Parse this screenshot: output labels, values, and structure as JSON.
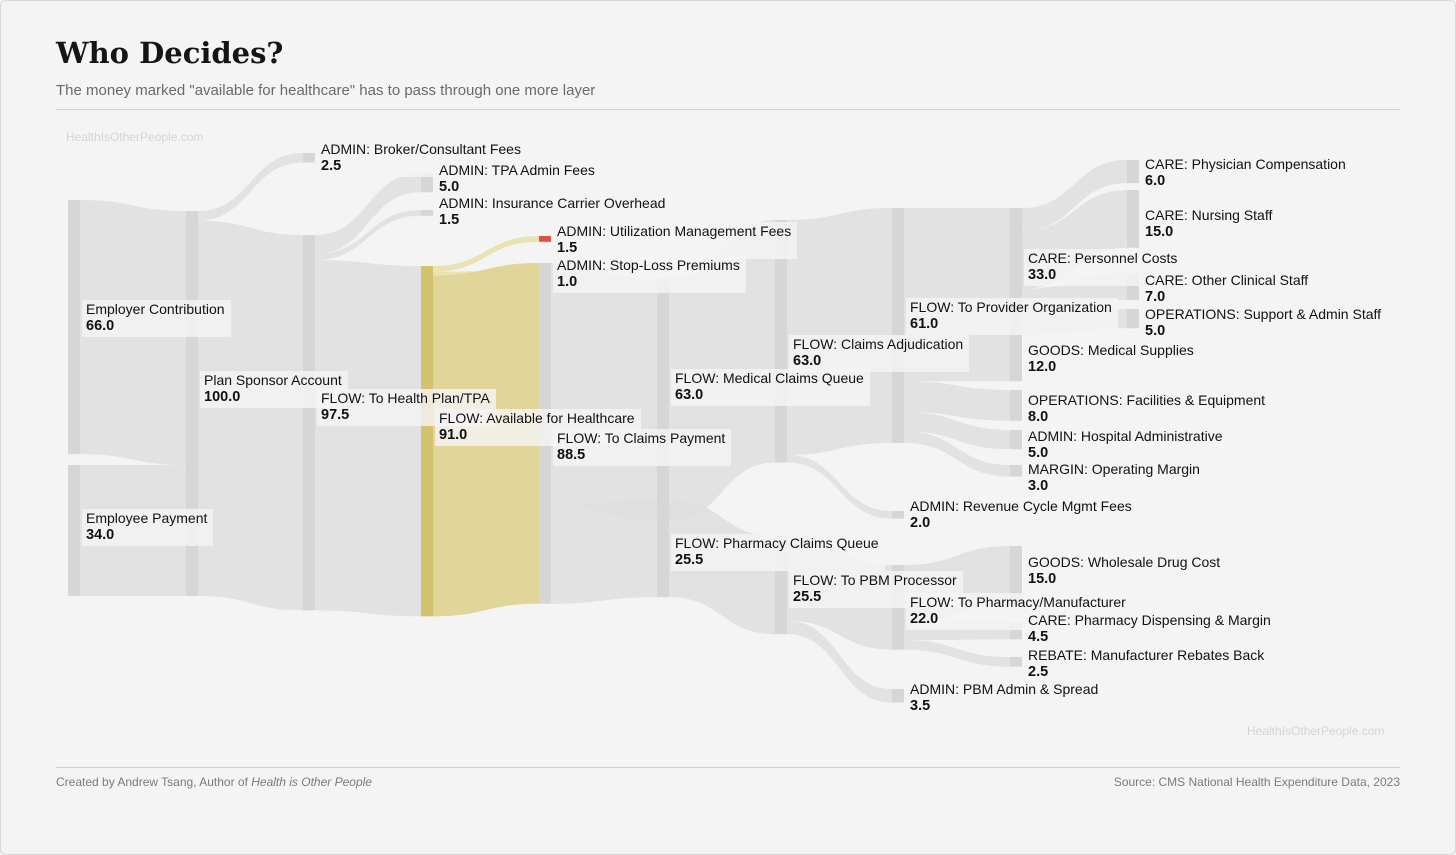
{
  "header": {
    "title": "Who Decides?",
    "subtitle": "The money marked \"available for healthcare\" has to pass through one more layer",
    "watermark": "HealthIsOtherPeople.com"
  },
  "footer": {
    "credit_prefix": "Created by Andrew Tsang, Author of ",
    "credit_book": "Health is Other People",
    "source": "Source: CMS National Health Expenditure Data, 2023"
  },
  "colors": {
    "node": "#d6d6d6",
    "link": "#e0e0e0",
    "highlight_node": "#d5c26e",
    "highlight_link": "#e8e0ad",
    "highlight_link_strong": "#e0d394",
    "red": "#e0503c",
    "orange": "#e08a3c"
  },
  "chart_data": {
    "type": "sankey",
    "title": "Who Decides?",
    "units": "dollars per 100",
    "nodes": [
      {
        "id": "employer",
        "label": "Employer Contribution",
        "value": "66.0"
      },
      {
        "id": "employee",
        "label": "Employee Payment",
        "value": "34.0"
      },
      {
        "id": "sponsor",
        "label": "Plan Sponsor Account",
        "value": "100.0"
      },
      {
        "id": "broker",
        "label": "ADMIN: Broker/Consultant Fees",
        "value": "2.5"
      },
      {
        "id": "healthplan",
        "label": "FLOW: To Health Plan/TPA",
        "value": "97.5"
      },
      {
        "id": "tpa",
        "label": "ADMIN: TPA Admin Fees",
        "value": "5.0"
      },
      {
        "id": "carrier",
        "label": "ADMIN: Insurance Carrier Overhead",
        "value": "1.5"
      },
      {
        "id": "available",
        "label": "FLOW: Available for Healthcare",
        "value": "91.0"
      },
      {
        "id": "um",
        "label": "ADMIN: Utilization Management Fees",
        "value": "1.5"
      },
      {
        "id": "stoploss",
        "label": "ADMIN: Stop-Loss Premiums",
        "value": "1.0"
      },
      {
        "id": "claimspay",
        "label": "FLOW: To Claims Payment",
        "value": "88.5"
      },
      {
        "id": "medq",
        "label": "FLOW: Medical Claims Queue",
        "value": "63.0"
      },
      {
        "id": "pharmq",
        "label": "FLOW: Pharmacy Claims Queue",
        "value": "25.5"
      },
      {
        "id": "adjud",
        "label": "FLOW: Claims Adjudication",
        "value": "63.0"
      },
      {
        "id": "pbm",
        "label": "FLOW: To PBM Processor",
        "value": "25.5"
      },
      {
        "id": "provider",
        "label": "FLOW: To Provider Organization",
        "value": "61.0"
      },
      {
        "id": "rcm",
        "label": "ADMIN: Revenue Cycle Mgmt Fees",
        "value": "2.0"
      },
      {
        "id": "pharmacy",
        "label": "FLOW: To Pharmacy/Manufacturer",
        "value": "22.0"
      },
      {
        "id": "pbmadmin",
        "label": "ADMIN: PBM Admin & Spread",
        "value": "3.5"
      },
      {
        "id": "personnel",
        "label": "CARE: Personnel Costs",
        "value": "33.0"
      },
      {
        "id": "supplies",
        "label": "GOODS: Medical Supplies",
        "value": "12.0"
      },
      {
        "id": "facilities",
        "label": "OPERATIONS: Facilities & Equipment",
        "value": "8.0"
      },
      {
        "id": "hospadmin",
        "label": "ADMIN: Hospital Administrative",
        "value": "5.0"
      },
      {
        "id": "margin",
        "label": "MARGIN: Operating Margin",
        "value": "3.0"
      },
      {
        "id": "wholesale",
        "label": "GOODS: Wholesale Drug Cost",
        "value": "15.0"
      },
      {
        "id": "dispensing",
        "label": "CARE: Pharmacy Dispensing & Margin",
        "value": "4.5"
      },
      {
        "id": "rebate",
        "label": "REBATE: Manufacturer Rebates Back",
        "value": "2.5"
      },
      {
        "id": "physician",
        "label": "CARE: Physician Compensation",
        "value": "6.0"
      },
      {
        "id": "nursing",
        "label": "CARE: Nursing Staff",
        "value": "15.0"
      },
      {
        "id": "otherclin",
        "label": "CARE: Other Clinical Staff",
        "value": "7.0"
      },
      {
        "id": "support",
        "label": "OPERATIONS: Support & Admin Staff",
        "value": "5.0"
      }
    ],
    "links": [
      {
        "source": "employer",
        "target": "sponsor",
        "value": 66.0
      },
      {
        "source": "employee",
        "target": "sponsor",
        "value": 34.0
      },
      {
        "source": "sponsor",
        "target": "broker",
        "value": 2.5
      },
      {
        "source": "sponsor",
        "target": "healthplan",
        "value": 97.5
      },
      {
        "source": "healthplan",
        "target": "tpa",
        "value": 5.0
      },
      {
        "source": "healthplan",
        "target": "carrier",
        "value": 1.5
      },
      {
        "source": "healthplan",
        "target": "available",
        "value": 91.0
      },
      {
        "source": "available",
        "target": "um",
        "value": 1.5
      },
      {
        "source": "available",
        "target": "stoploss",
        "value": 1.0
      },
      {
        "source": "available",
        "target": "claimspay",
        "value": 88.5
      },
      {
        "source": "claimspay",
        "target": "medq",
        "value": 63.0
      },
      {
        "source": "claimspay",
        "target": "pharmq",
        "value": 25.5
      },
      {
        "source": "medq",
        "target": "adjud",
        "value": 63.0
      },
      {
        "source": "pharmq",
        "target": "pbm",
        "value": 25.5
      },
      {
        "source": "adjud",
        "target": "provider",
        "value": 61.0
      },
      {
        "source": "adjud",
        "target": "rcm",
        "value": 2.0
      },
      {
        "source": "pbm",
        "target": "pharmacy",
        "value": 22.0
      },
      {
        "source": "pbm",
        "target": "pbmadmin",
        "value": 3.5
      },
      {
        "source": "provider",
        "target": "personnel",
        "value": 33.0
      },
      {
        "source": "provider",
        "target": "supplies",
        "value": 12.0
      },
      {
        "source": "provider",
        "target": "facilities",
        "value": 8.0
      },
      {
        "source": "provider",
        "target": "hospadmin",
        "value": 5.0
      },
      {
        "source": "provider",
        "target": "margin",
        "value": 3.0
      },
      {
        "source": "pharmacy",
        "target": "wholesale",
        "value": 15.0
      },
      {
        "source": "pharmacy",
        "target": "dispensing",
        "value": 4.5
      },
      {
        "source": "pharmacy",
        "target": "rebate",
        "value": 2.5
      },
      {
        "source": "personnel",
        "target": "physician",
        "value": 6.0
      },
      {
        "source": "personnel",
        "target": "nursing",
        "value": 15.0
      },
      {
        "source": "personnel",
        "target": "otherclin",
        "value": 7.0
      },
      {
        "source": "personnel",
        "target": "support",
        "value": 5.0
      }
    ]
  }
}
